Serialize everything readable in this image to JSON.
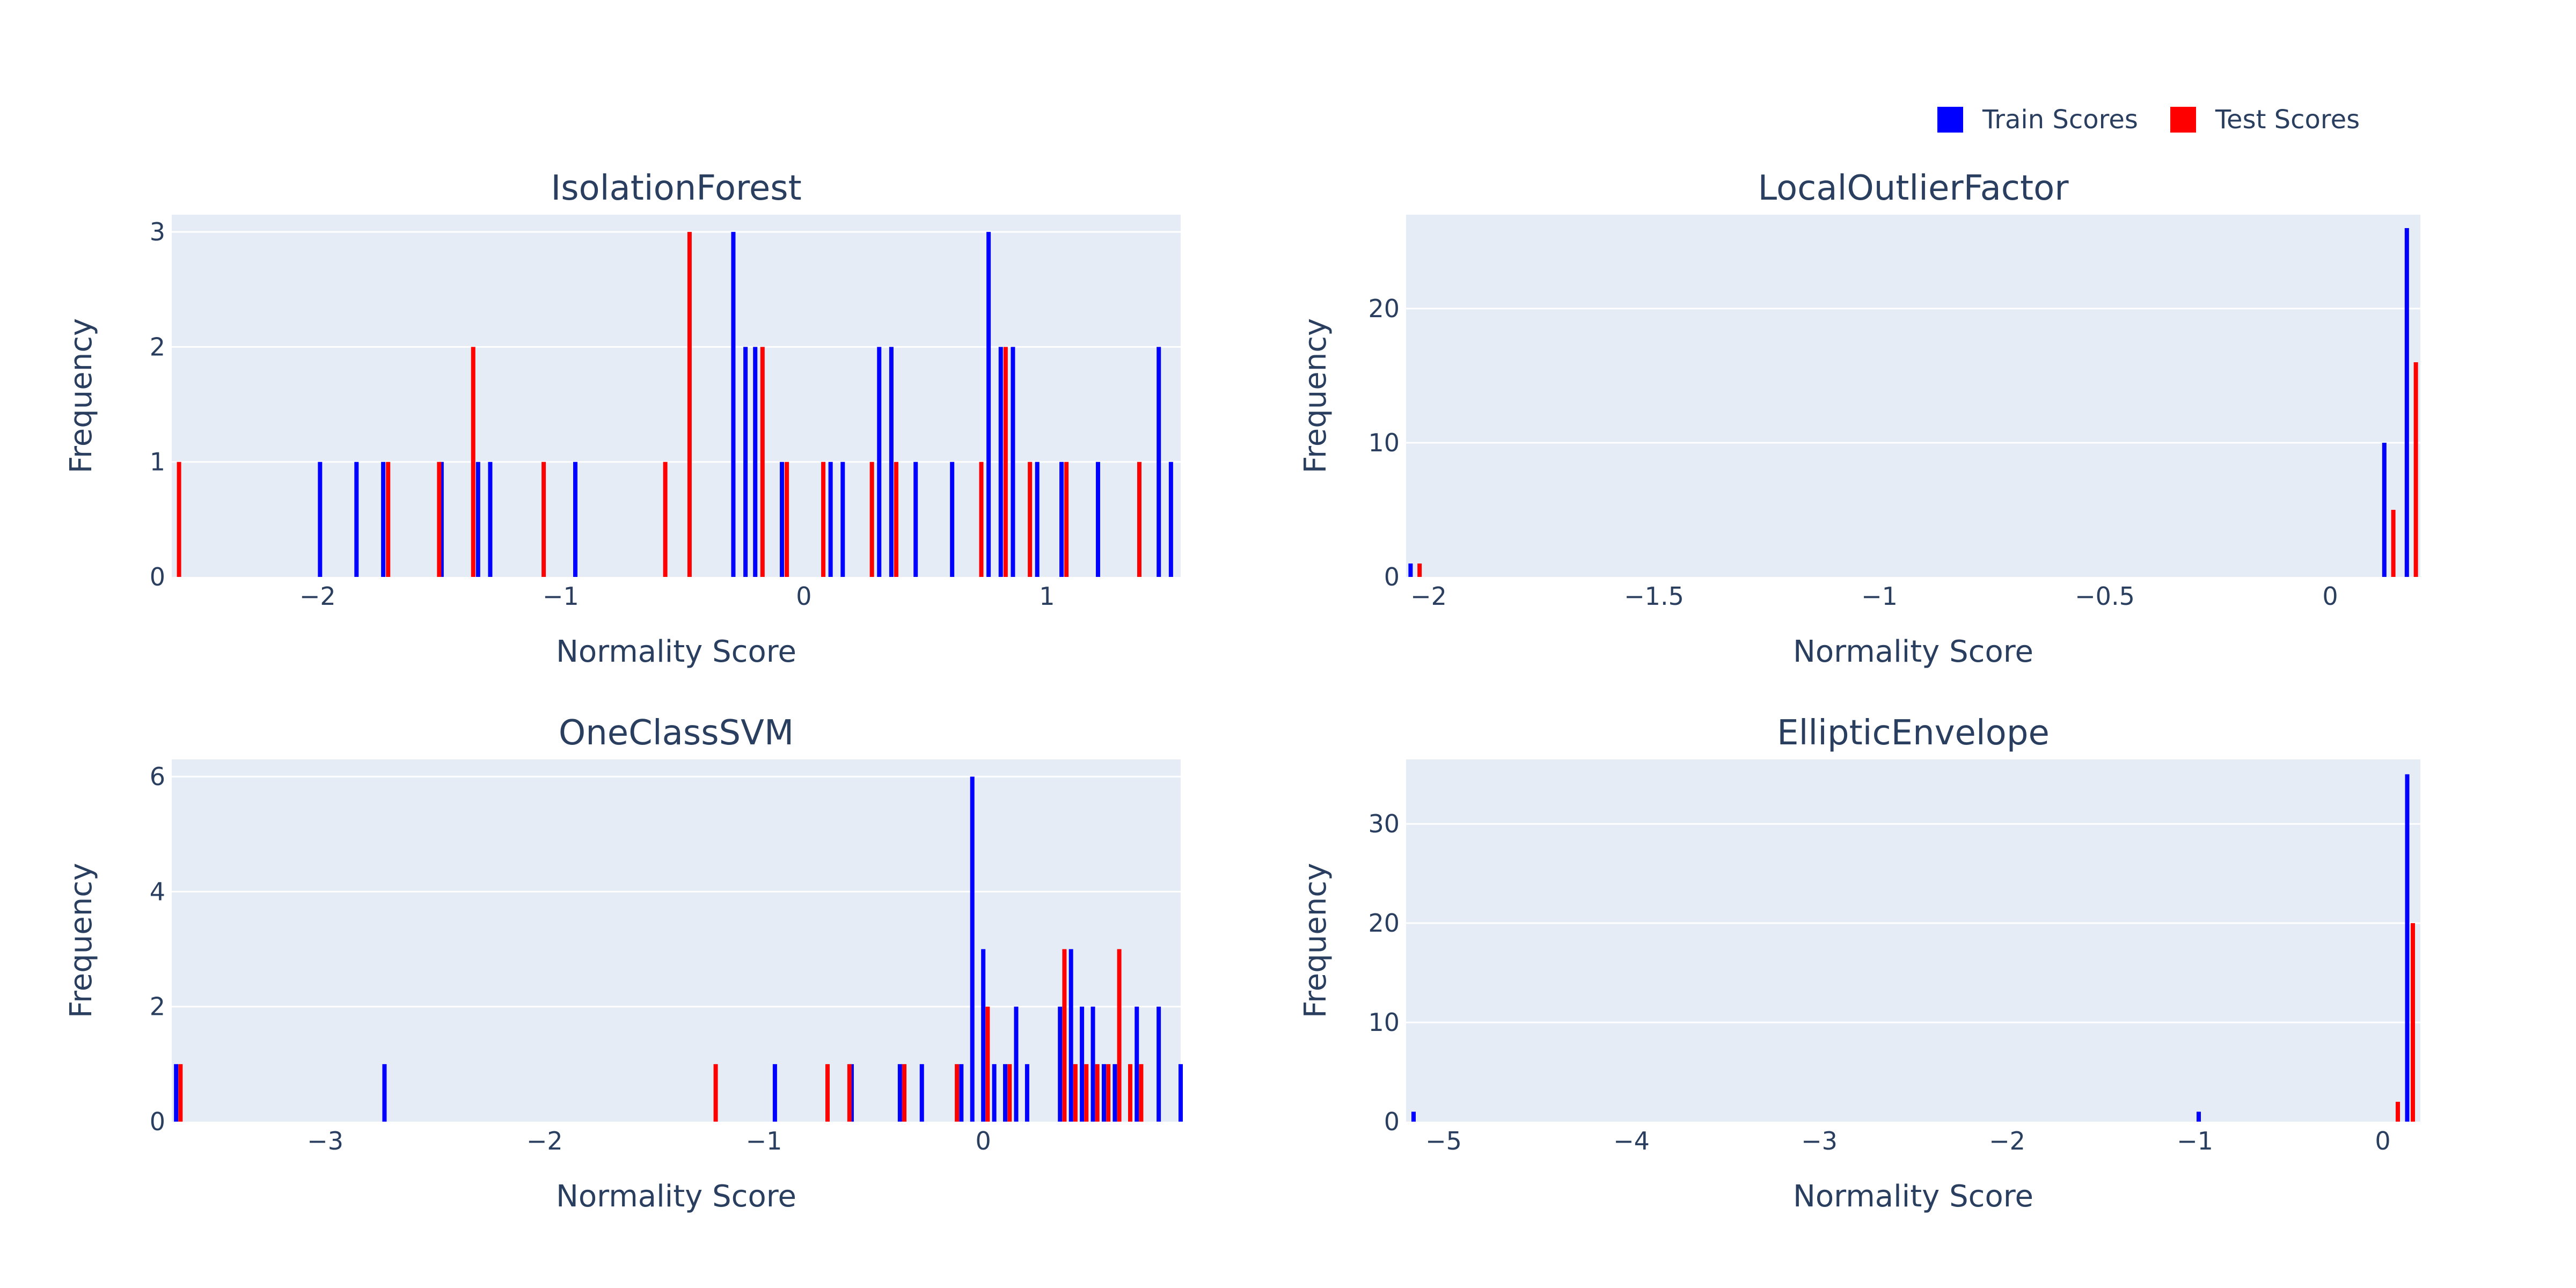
{
  "legend": [
    {
      "name": "Train Scores",
      "color": "#0000ff"
    },
    {
      "name": "Test Scores",
      "color": "#ff0000"
    }
  ],
  "chart_data": [
    {
      "type": "bar",
      "title": "IsolationForest",
      "xlabel": "Normality Score",
      "ylabel": "Frequency",
      "xlim": [
        -2.6,
        1.55
      ],
      "ylim": [
        0,
        3.15
      ],
      "xticks": [
        {
          "v": -2,
          "label": "−2"
        },
        {
          "v": -1,
          "label": "−1"
        },
        {
          "v": 0,
          "label": "0"
        },
        {
          "v": 1,
          "label": "1"
        }
      ],
      "yticks": [
        {
          "v": 0,
          "label": "0"
        },
        {
          "v": 1,
          "label": "1"
        },
        {
          "v": 2,
          "label": "2"
        },
        {
          "v": 3,
          "label": "3"
        }
      ],
      "series": [
        {
          "name": "Train Scores",
          "color": "#0000ff",
          "x": [
            -1.99,
            -1.84,
            -1.73,
            -1.49,
            -1.34,
            -1.29,
            -0.94,
            -0.29,
            -0.24,
            -0.2,
            -0.09,
            0.11,
            0.16,
            0.31,
            0.36,
            0.46,
            0.61,
            0.76,
            0.81,
            0.86,
            0.96,
            1.06,
            1.21,
            1.46,
            1.51
          ],
          "y": [
            1,
            1,
            1,
            1,
            1,
            1,
            1,
            3,
            2,
            2,
            1,
            1,
            1,
            2,
            2,
            1,
            1,
            3,
            2,
            2,
            1,
            1,
            1,
            2,
            1
          ]
        },
        {
          "name": "Test Scores",
          "color": "#ff0000",
          "x": [
            -2.57,
            -1.71,
            -1.5,
            -1.36,
            -1.07,
            -0.57,
            -0.47,
            -0.17,
            -0.07,
            0.08,
            0.28,
            0.38,
            0.73,
            0.83,
            0.93,
            1.08,
            1.38
          ],
          "y": [
            1,
            1,
            1,
            2,
            1,
            1,
            3,
            2,
            1,
            1,
            1,
            1,
            1,
            2,
            1,
            1,
            1
          ]
        }
      ]
    },
    {
      "type": "bar",
      "title": "LocalOutlierFactor",
      "xlabel": "Normality Score",
      "ylabel": "Frequency",
      "xlim": [
        -2.05,
        0.2
      ],
      "ylim": [
        0,
        27
      ],
      "xticks": [
        {
          "v": -2,
          "label": "−2"
        },
        {
          "v": -1.5,
          "label": "−1.5"
        },
        {
          "v": -1,
          "label": "−1"
        },
        {
          "v": -0.5,
          "label": "−0.5"
        },
        {
          "v": 0,
          "label": "0"
        }
      ],
      "yticks": [
        {
          "v": 0,
          "label": "0"
        },
        {
          "v": 10,
          "label": "10"
        },
        {
          "v": 20,
          "label": "20"
        }
      ],
      "series": [
        {
          "name": "Train Scores",
          "color": "#0000ff",
          "x": [
            -2.04,
            0.12,
            0.17
          ],
          "y": [
            1,
            10,
            26
          ]
        },
        {
          "name": "Test Scores",
          "color": "#ff0000",
          "x": [
            -2.02,
            0.14,
            0.19
          ],
          "y": [
            1,
            5,
            16
          ]
        }
      ]
    },
    {
      "type": "bar",
      "title": "OneClassSVM",
      "xlabel": "Normality Score",
      "ylabel": "Frequency",
      "xlim": [
        -3.7,
        0.9
      ],
      "ylim": [
        0,
        6.3
      ],
      "xticks": [
        {
          "v": -3,
          "label": "−3"
        },
        {
          "v": -2,
          "label": "−2"
        },
        {
          "v": -1,
          "label": "−1"
        },
        {
          "v": 0,
          "label": "0"
        }
      ],
      "yticks": [
        {
          "v": 0,
          "label": "0"
        },
        {
          "v": 2,
          "label": "2"
        },
        {
          "v": 4,
          "label": "4"
        },
        {
          "v": 6,
          "label": "6"
        }
      ],
      "series": [
        {
          "name": "Train Scores",
          "color": "#0000ff",
          "x": [
            -3.68,
            -2.73,
            -0.95,
            -0.6,
            -0.38,
            -0.28,
            -0.1,
            -0.05,
            0.0,
            0.05,
            0.1,
            0.15,
            0.2,
            0.35,
            0.4,
            0.45,
            0.5,
            0.55,
            0.6,
            0.7,
            0.8,
            0.9
          ],
          "y": [
            1,
            1,
            1,
            1,
            1,
            1,
            1,
            6,
            3,
            1,
            1,
            2,
            1,
            2,
            3,
            2,
            2,
            1,
            1,
            2,
            2,
            1
          ]
        },
        {
          "name": "Test Scores",
          "color": "#ff0000",
          "x": [
            -3.66,
            -1.22,
            -0.71,
            -0.61,
            -0.36,
            -0.12,
            0.02,
            0.12,
            0.37,
            0.42,
            0.47,
            0.52,
            0.57,
            0.62,
            0.67,
            0.72
          ],
          "y": [
            1,
            1,
            1,
            1,
            1,
            1,
            2,
            1,
            3,
            1,
            1,
            1,
            1,
            3,
            1,
            1
          ]
        }
      ]
    },
    {
      "type": "bar",
      "title": "EllipticEnvelope",
      "xlabel": "Normality Score",
      "ylabel": "Frequency",
      "xlim": [
        -5.2,
        0.2
      ],
      "ylim": [
        0,
        36.5
      ],
      "xticks": [
        {
          "v": -5,
          "label": "−5"
        },
        {
          "v": -4,
          "label": "−4"
        },
        {
          "v": -3,
          "label": "−3"
        },
        {
          "v": -2,
          "label": "−2"
        },
        {
          "v": -1,
          "label": "−1"
        },
        {
          "v": 0,
          "label": "0"
        }
      ],
      "yticks": [
        {
          "v": 0,
          "label": "0"
        },
        {
          "v": 10,
          "label": "10"
        },
        {
          "v": 20,
          "label": "20"
        },
        {
          "v": 30,
          "label": "30"
        }
      ],
      "series": [
        {
          "name": "Train Scores",
          "color": "#0000ff",
          "x": [
            -5.16,
            -0.98,
            0.13
          ],
          "y": [
            1,
            1,
            35
          ]
        },
        {
          "name": "Test Scores",
          "color": "#ff0000",
          "x": [
            0.08,
            0.16
          ],
          "y": [
            2,
            20
          ]
        }
      ]
    }
  ]
}
